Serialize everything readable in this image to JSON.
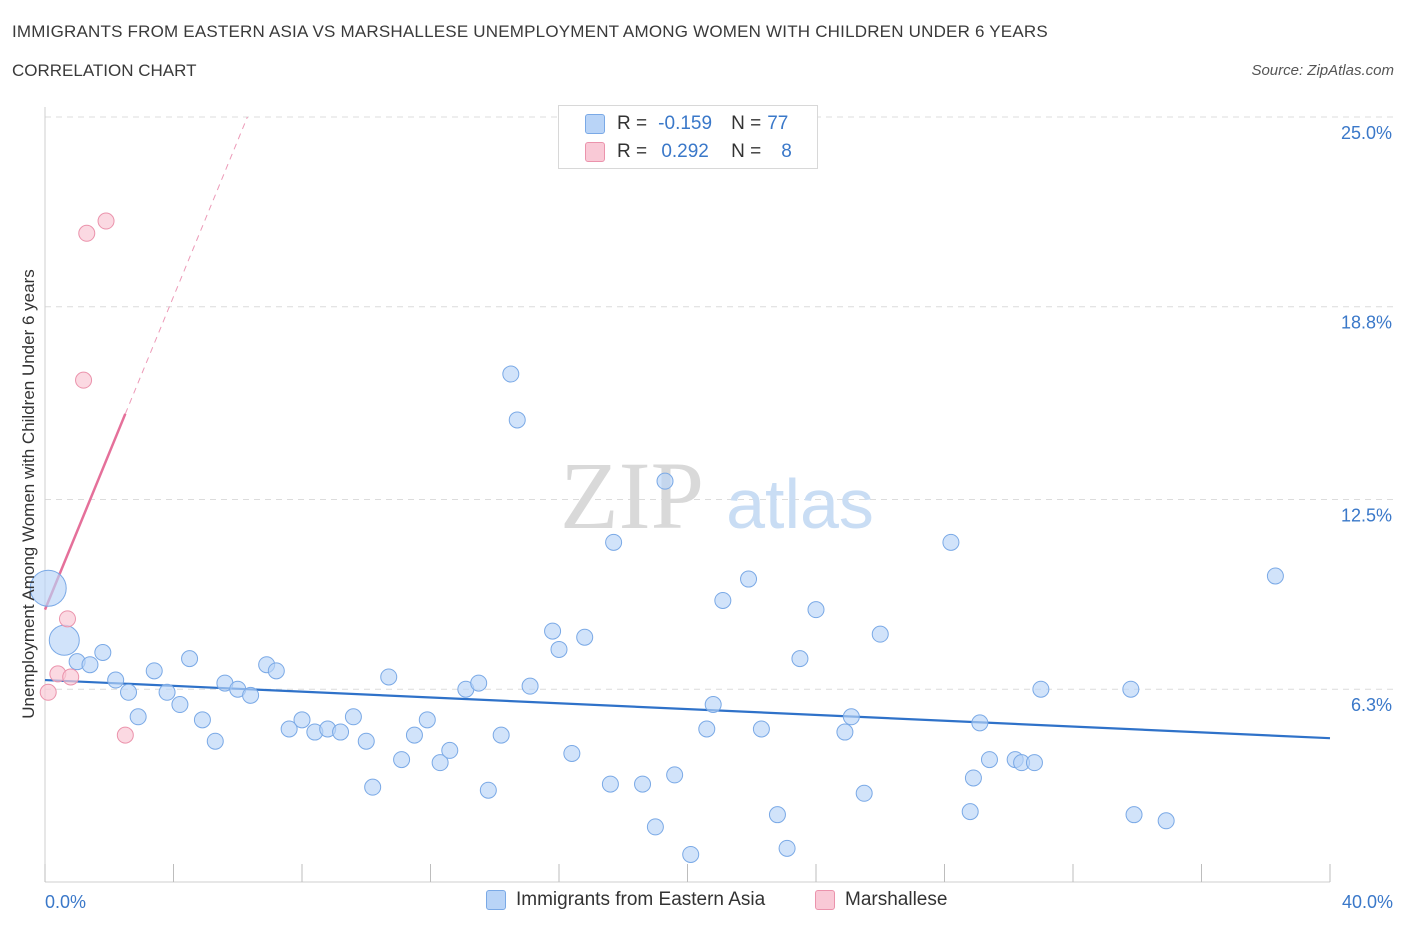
{
  "title": "IMMIGRANTS FROM EASTERN ASIA VS MARSHALLESE UNEMPLOYMENT AMONG WOMEN WITH CHILDREN UNDER 6 YEARS",
  "subtitle": "CORRELATION CHART",
  "source": "Source: ZipAtlas.com",
  "watermark": {
    "zip": "ZIP",
    "atlas": "atlas"
  },
  "legend": {
    "r_label": "R =",
    "n_label": "N =",
    "rows": [
      {
        "r": "-0.159",
        "n": "77",
        "color": "#b9d4f7",
        "border": "#7aa9e6"
      },
      {
        "r": "0.292",
        "n": "8",
        "color": "#f9c9d6",
        "border": "#eb93ac"
      }
    ]
  },
  "colors": {
    "blue_fill": "#b9d4f7",
    "blue_stroke": "#7aa9e6",
    "blue_line": "#2f72c9",
    "pink_fill": "#f9c9d6",
    "pink_stroke": "#eb93ac",
    "pink_line": "#e5709a",
    "grid": "#dcdcdc",
    "tick_text": "#3a78c9"
  },
  "chart_data": {
    "type": "scatter",
    "title": "IMMIGRANTS FROM EASTERN ASIA VS MARSHALLESE UNEMPLOYMENT AMONG WOMEN WITH CHILDREN UNDER 6 YEARS",
    "subtitle": "CORRELATION CHART",
    "xlabel": "",
    "ylabel": "Unemployment Among Women with Children Under 6 years",
    "xlim": [
      0,
      40
    ],
    "ylim": [
      0,
      25
    ],
    "x_tick_labels": [
      "0.0%",
      "40.0%"
    ],
    "y_ticks": [
      6.3,
      12.5,
      18.8,
      25.0
    ],
    "y_tick_labels": [
      "6.3%",
      "12.5%",
      "18.8%",
      "25.0%"
    ],
    "grid": true,
    "legend_position": "top-center",
    "series": [
      {
        "name": "Immigrants from Eastern Asia",
        "r": -0.159,
        "n": 77,
        "trend": {
          "x": [
            0,
            40
          ],
          "y": [
            6.6,
            4.7
          ]
        },
        "points": [
          {
            "x": 0.1,
            "y": 9.6,
            "big": 2
          },
          {
            "x": 0.6,
            "y": 7.9,
            "big": 1
          },
          {
            "x": 1.0,
            "y": 7.2
          },
          {
            "x": 1.4,
            "y": 7.1
          },
          {
            "x": 1.8,
            "y": 7.5
          },
          {
            "x": 2.2,
            "y": 6.6
          },
          {
            "x": 2.6,
            "y": 6.2
          },
          {
            "x": 2.9,
            "y": 5.4
          },
          {
            "x": 3.4,
            "y": 6.9
          },
          {
            "x": 3.8,
            "y": 6.2
          },
          {
            "x": 4.2,
            "y": 5.8
          },
          {
            "x": 4.5,
            "y": 7.3
          },
          {
            "x": 4.9,
            "y": 5.3
          },
          {
            "x": 5.3,
            "y": 4.6
          },
          {
            "x": 5.6,
            "y": 6.5
          },
          {
            "x": 6.0,
            "y": 6.3
          },
          {
            "x": 6.4,
            "y": 6.1
          },
          {
            "x": 6.9,
            "y": 7.1
          },
          {
            "x": 7.2,
            "y": 6.9
          },
          {
            "x": 7.6,
            "y": 5.0
          },
          {
            "x": 8.0,
            "y": 5.3
          },
          {
            "x": 8.4,
            "y": 4.9
          },
          {
            "x": 8.8,
            "y": 5.0
          },
          {
            "x": 9.2,
            "y": 4.9
          },
          {
            "x": 9.6,
            "y": 5.4
          },
          {
            "x": 10.0,
            "y": 4.6
          },
          {
            "x": 10.2,
            "y": 3.1
          },
          {
            "x": 10.7,
            "y": 6.7
          },
          {
            "x": 11.1,
            "y": 4.0
          },
          {
            "x": 11.5,
            "y": 4.8
          },
          {
            "x": 11.9,
            "y": 5.3
          },
          {
            "x": 12.3,
            "y": 3.9
          },
          {
            "x": 12.6,
            "y": 4.3
          },
          {
            "x": 13.1,
            "y": 6.3
          },
          {
            "x": 13.5,
            "y": 6.5
          },
          {
            "x": 13.8,
            "y": 3.0
          },
          {
            "x": 14.2,
            "y": 4.8
          },
          {
            "x": 14.5,
            "y": 16.6
          },
          {
            "x": 14.7,
            "y": 15.1
          },
          {
            "x": 15.1,
            "y": 6.4
          },
          {
            "x": 15.8,
            "y": 8.2
          },
          {
            "x": 16.0,
            "y": 7.6
          },
          {
            "x": 16.4,
            "y": 4.2
          },
          {
            "x": 16.8,
            "y": 8.0
          },
          {
            "x": 17.6,
            "y": 3.2
          },
          {
            "x": 17.7,
            "y": 11.1
          },
          {
            "x": 18.6,
            "y": 3.2
          },
          {
            "x": 19.0,
            "y": 1.8
          },
          {
            "x": 19.3,
            "y": 13.1
          },
          {
            "x": 19.6,
            "y": 3.5
          },
          {
            "x": 20.1,
            "y": 0.9
          },
          {
            "x": 20.6,
            "y": 5.0
          },
          {
            "x": 20.8,
            "y": 5.8
          },
          {
            "x": 21.1,
            "y": 9.2
          },
          {
            "x": 21.9,
            "y": 9.9
          },
          {
            "x": 22.3,
            "y": 5.0
          },
          {
            "x": 22.8,
            "y": 2.2
          },
          {
            "x": 23.1,
            "y": 1.1
          },
          {
            "x": 23.5,
            "y": 7.3
          },
          {
            "x": 24.0,
            "y": 8.9
          },
          {
            "x": 24.9,
            "y": 4.9
          },
          {
            "x": 25.1,
            "y": 5.4
          },
          {
            "x": 25.5,
            "y": 2.9
          },
          {
            "x": 26.0,
            "y": 8.1
          },
          {
            "x": 28.2,
            "y": 11.1
          },
          {
            "x": 28.8,
            "y": 2.3
          },
          {
            "x": 28.9,
            "y": 3.4
          },
          {
            "x": 29.1,
            "y": 5.2
          },
          {
            "x": 29.4,
            "y": 4.0
          },
          {
            "x": 30.2,
            "y": 4.0
          },
          {
            "x": 30.4,
            "y": 3.9
          },
          {
            "x": 30.8,
            "y": 3.9
          },
          {
            "x": 31.0,
            "y": 6.3
          },
          {
            "x": 33.9,
            "y": 2.2
          },
          {
            "x": 33.8,
            "y": 6.3
          },
          {
            "x": 34.9,
            "y": 2.0
          },
          {
            "x": 38.3,
            "y": 10.0
          }
        ]
      },
      {
        "name": "Marshallese",
        "r": 0.292,
        "n": 8,
        "trend": {
          "x": [
            0,
            2.5
          ],
          "y": [
            8.9,
            15.3
          ]
        },
        "trend_extended": {
          "x": [
            2.5,
            6.3
          ],
          "y": [
            15.3,
            25.0
          ]
        },
        "points": [
          {
            "x": 0.1,
            "y": 6.2
          },
          {
            "x": 0.4,
            "y": 6.8
          },
          {
            "x": 0.8,
            "y": 6.7
          },
          {
            "x": 0.7,
            "y": 8.6
          },
          {
            "x": 1.2,
            "y": 16.4
          },
          {
            "x": 1.3,
            "y": 21.2
          },
          {
            "x": 1.9,
            "y": 21.6
          },
          {
            "x": 2.5,
            "y": 4.8
          }
        ]
      }
    ]
  }
}
